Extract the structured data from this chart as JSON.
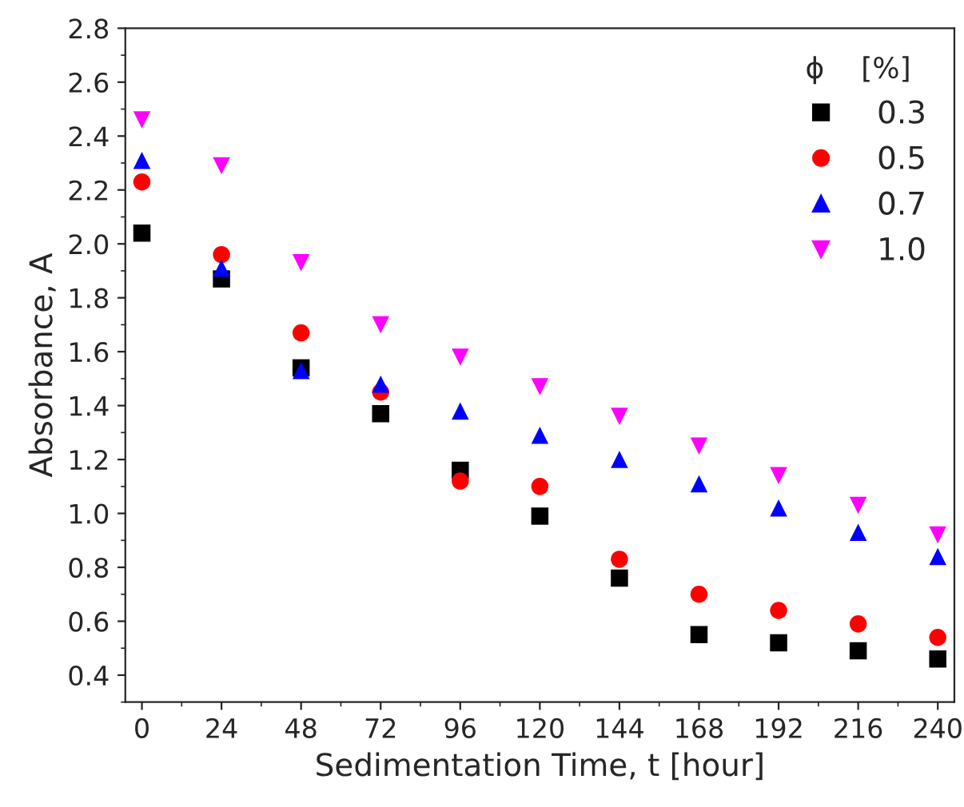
{
  "chart_data": {
    "type": "scatter",
    "xlabel": "Sedimentation Time, t [hour]",
    "ylabel": "Absorbance, A",
    "legend_title": "ϕ    [%]",
    "x": [
      0,
      24,
      48,
      72,
      96,
      120,
      144,
      168,
      192,
      216,
      240
    ],
    "series": [
      {
        "name": "0.3",
        "color": "#000000",
        "marker": "square",
        "values": [
          2.04,
          1.87,
          1.54,
          1.37,
          1.16,
          0.99,
          0.76,
          0.55,
          0.52,
          0.49,
          0.46
        ]
      },
      {
        "name": "0.5",
        "color": "#ff0000",
        "marker": "circle",
        "values": [
          2.23,
          1.96,
          1.67,
          1.45,
          1.12,
          1.1,
          0.83,
          0.7,
          0.64,
          0.59,
          0.54
        ]
      },
      {
        "name": "0.7",
        "color": "#0000ff",
        "marker": "triangle",
        "values": [
          2.31,
          1.91,
          1.53,
          1.48,
          1.38,
          1.29,
          1.2,
          1.11,
          1.02,
          0.93,
          0.84
        ]
      },
      {
        "name": "1.0",
        "color": "#ff00ff",
        "marker": "triangle_down",
        "values": [
          2.46,
          2.29,
          1.93,
          1.7,
          1.58,
          1.47,
          1.36,
          1.25,
          1.14,
          1.03,
          0.92
        ]
      }
    ],
    "xlim": [
      -5,
      245
    ],
    "xticks": [
      0,
      24,
      48,
      72,
      96,
      120,
      144,
      168,
      192,
      216,
      240
    ],
    "ylim": [
      0.3,
      2.8
    ],
    "yticks": [
      {
        "value": 0.4,
        "label": "0.4"
      },
      {
        "value": 0.6,
        "label": "0.6"
      },
      {
        "value": 0.8,
        "label": "0.8"
      },
      {
        "value": 1.0,
        "label": "1.0"
      },
      {
        "value": 1.2,
        "label": "1.2"
      },
      {
        "value": 1.4,
        "label": "1.4"
      },
      {
        "value": 1.6,
        "label": "1.6"
      },
      {
        "value": 1.8,
        "label": "1.8"
      },
      {
        "value": 2.0,
        "label": "2.0"
      },
      {
        "value": 2.2,
        "label": "2.2"
      },
      {
        "value": 2.4,
        "label": "2.4"
      },
      {
        "value": 2.6,
        "label": "2.6"
      },
      {
        "value": 2.8,
        "label": "2.8"
      }
    ],
    "grid": false,
    "legend": "top right"
  }
}
